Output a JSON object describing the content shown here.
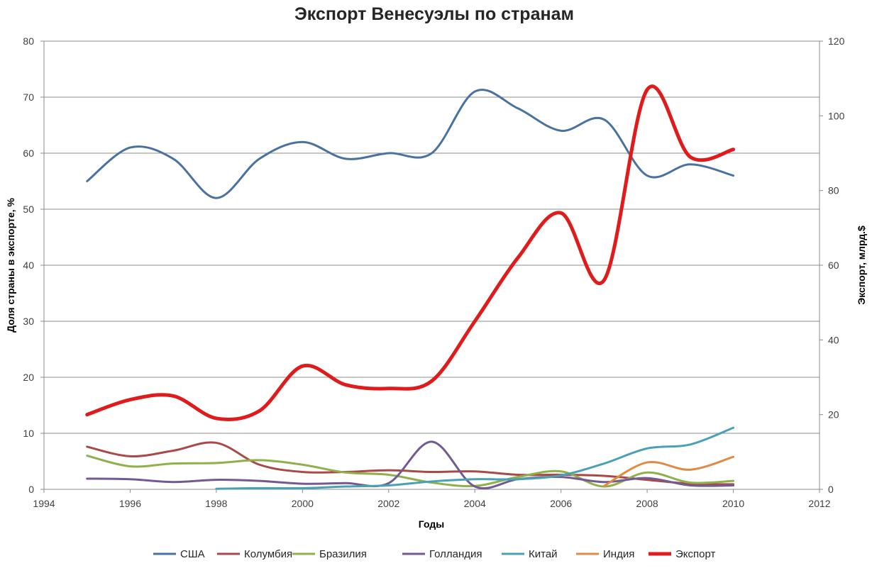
{
  "chart_data": {
    "type": "line",
    "title": "Экспорт Венесуэлы по странам",
    "xlabel": "Годы",
    "ylabel": "Доля страны в экспорте, %",
    "y2label": "Экспорт, млрд.$",
    "xlim": [
      1994,
      2012
    ],
    "ylim": [
      0,
      80
    ],
    "y2lim": [
      0,
      120
    ],
    "x_ticks": [
      "1994",
      "1996",
      "1998",
      "2000",
      "2002",
      "2004",
      "2006",
      "2008",
      "2010",
      "2012"
    ],
    "y_ticks": [
      "0",
      "10",
      "20",
      "30",
      "40",
      "50",
      "60",
      "70",
      "80"
    ],
    "y2_ticks": [
      "0",
      "20",
      "40",
      "60",
      "80",
      "100",
      "120"
    ],
    "grid": "horizontal",
    "legend_position": "bottom",
    "smooth": true,
    "series": [
      {
        "name": "США",
        "color": "#4a72a0",
        "axis": "left",
        "width": 3,
        "x": [
          1995,
          1996,
          1997,
          1998,
          1999,
          2000,
          2001,
          2002,
          2003,
          2004,
          2005,
          2006,
          2007,
          2008,
          2009,
          2010
        ],
        "y": [
          55,
          61,
          59,
          52,
          59,
          62,
          59,
          60,
          60,
          71,
          68,
          64,
          66,
          56,
          58,
          56
        ]
      },
      {
        "name": "Колумбия",
        "color": "#a84a48",
        "axis": "left",
        "width": 3,
        "x": [
          1995,
          1996,
          1997,
          1998,
          1999,
          2000,
          2001,
          2002,
          2003,
          2004,
          2005,
          2006,
          2007,
          2008,
          2009,
          2010
        ],
        "y": [
          7.6,
          5.9,
          6.9,
          8.3,
          4.4,
          3.1,
          3.1,
          3.4,
          3.1,
          3.2,
          2.6,
          2.6,
          2.4,
          1.7,
          1.0,
          0.9
        ]
      },
      {
        "name": "Бразилия",
        "color": "#8fb04b",
        "axis": "left",
        "width": 3,
        "x": [
          1995,
          1996,
          1997,
          1998,
          1999,
          2000,
          2001,
          2002,
          2003,
          2004,
          2005,
          2006,
          2007,
          2008,
          2009,
          2010
        ],
        "y": [
          6.0,
          4.1,
          4.6,
          4.7,
          5.2,
          4.4,
          3.0,
          2.6,
          1.2,
          0.6,
          2.2,
          3.2,
          0.5,
          3.0,
          1.2,
          1.5
        ]
      },
      {
        "name": "Голландия",
        "color": "#735a90",
        "axis": "left",
        "width": 3,
        "x": [
          1995,
          1996,
          1997,
          1998,
          1999,
          2000,
          2001,
          2002,
          2003,
          2004,
          2005,
          2006,
          2007,
          2008,
          2009,
          2010
        ],
        "y": [
          1.9,
          1.8,
          1.3,
          1.7,
          1.5,
          1.0,
          1.1,
          1.1,
          8.5,
          0.5,
          1.8,
          2.2,
          1.3,
          2.0,
          0.7,
          0.7
        ]
      },
      {
        "name": "Китай",
        "color": "#4aa0b4",
        "axis": "left",
        "width": 3,
        "x": [
          1998,
          1999,
          2000,
          2001,
          2002,
          2003,
          2004,
          2005,
          2006,
          2007,
          2008,
          2009,
          2010
        ],
        "y": [
          0.1,
          0.2,
          0.2,
          0.5,
          0.7,
          1.4,
          1.8,
          1.8,
          2.5,
          4.6,
          7.3,
          8.0,
          11.0
        ]
      },
      {
        "name": "Индия",
        "color": "#e08b45",
        "axis": "left",
        "width": 3,
        "x": [
          2007,
          2008,
          2009,
          2010
        ],
        "y": [
          0.6,
          4.8,
          3.5,
          5.8
        ]
      },
      {
        "name": "Экспорт",
        "color": "#e01b1b",
        "axis": "right",
        "width": 5,
        "x": [
          1995,
          1996,
          1997,
          1998,
          1999,
          2000,
          2001,
          2002,
          2003,
          2004,
          2005,
          2006,
          2007,
          2008,
          2009,
          2010
        ],
        "y": [
          20,
          24,
          25,
          19,
          21,
          33,
          28,
          27,
          29,
          45,
          62,
          74,
          56,
          107,
          89,
          91
        ]
      }
    ]
  }
}
